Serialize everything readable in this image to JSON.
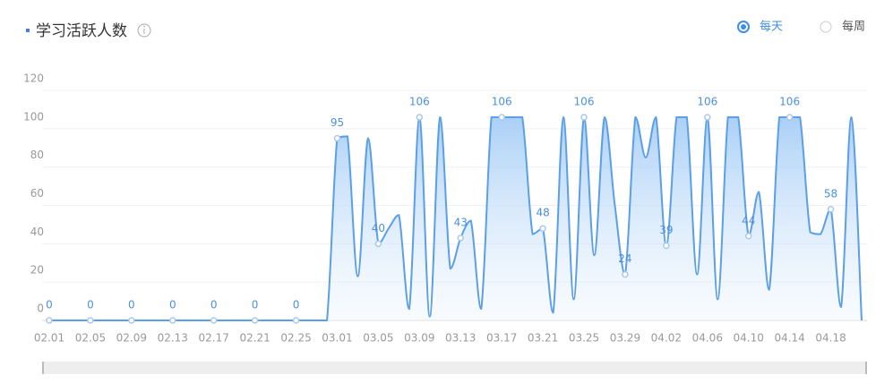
{
  "chart_data": {
    "type": "line",
    "title": "学习活跃人数",
    "view_options": [
      "每天",
      "每周"
    ],
    "selected_option": 0,
    "categories": [
      "02.01",
      null,
      null,
      null,
      "02.05",
      null,
      null,
      null,
      "02.09",
      null,
      null,
      null,
      "02.13",
      null,
      null,
      null,
      "02.17",
      null,
      null,
      null,
      "02.21",
      null,
      null,
      null,
      "02.25",
      null,
      null,
      null,
      "03.01",
      null,
      null,
      null,
      "03.05",
      null,
      null,
      null,
      "03.09",
      null,
      null,
      null,
      "03.13",
      null,
      null,
      null,
      "03.17",
      null,
      null,
      null,
      "03.21",
      null,
      null,
      null,
      "03.25",
      null,
      null,
      null,
      "03.29",
      null,
      null,
      null,
      "04.02",
      null,
      null,
      null,
      "04.06",
      null,
      null,
      null,
      "04.10",
      null,
      null,
      null,
      "04.14",
      null,
      null,
      null,
      "04.18",
      null,
      null,
      null
    ],
    "series": [
      {
        "name": "学习活跃人数",
        "color": "#5a9fe8",
        "values": [
          0,
          0,
          0,
          0,
          0,
          0,
          0,
          0,
          0,
          0,
          0,
          0,
          0,
          0,
          0,
          0,
          0,
          0,
          0,
          0,
          0,
          0,
          0,
          0,
          0,
          0,
          0,
          0,
          95,
          96,
          23,
          95,
          40,
          48,
          55,
          6,
          106,
          2,
          106,
          27,
          43,
          52,
          6,
          106,
          106,
          106,
          106,
          45,
          48,
          4,
          106,
          11,
          106,
          34,
          106,
          60,
          24,
          106,
          85,
          106,
          39,
          106,
          106,
          24,
          106,
          11,
          106,
          106,
          44,
          67,
          16,
          106,
          106,
          106,
          46,
          45,
          58,
          7,
          106,
          0
        ]
      }
    ],
    "ylim": [
      0,
      120
    ],
    "yticks": [
      0,
      20,
      40,
      60,
      80,
      100,
      120
    ],
    "grid": true
  }
}
